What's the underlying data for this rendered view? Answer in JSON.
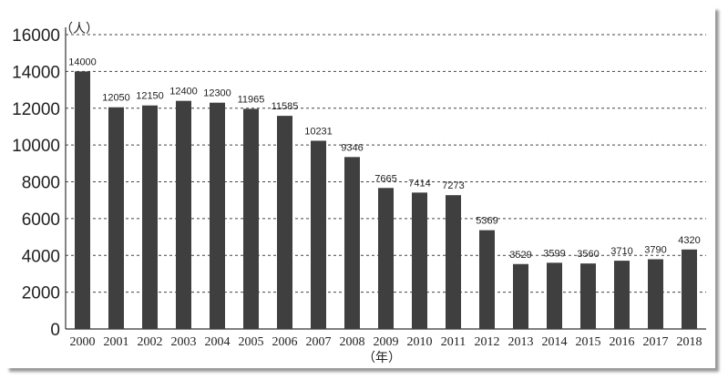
{
  "chart_data": {
    "type": "bar",
    "categories": [
      "2000",
      "2001",
      "2002",
      "2003",
      "2004",
      "2005",
      "2006",
      "2007",
      "2008",
      "2009",
      "2010",
      "2011",
      "2012",
      "2013",
      "2014",
      "2015",
      "2016",
      "2017",
      "2018"
    ],
    "values": [
      14000,
      12050,
      12150,
      12400,
      12300,
      11965,
      11585,
      10231,
      9346,
      7665,
      7414,
      7273,
      5369,
      3529,
      3599,
      3560,
      3710,
      3790,
      4320
    ],
    "y_ticks": [
      "0",
      "2000",
      "4000",
      "6000",
      "8000",
      "10000",
      "12000",
      "14000",
      "16000"
    ],
    "ylim": [
      0,
      16000
    ],
    "y_unit": "（人）",
    "x_unit": "（年）",
    "grid": "horizontal-dashed",
    "bar_color": "#3f3f3f"
  }
}
